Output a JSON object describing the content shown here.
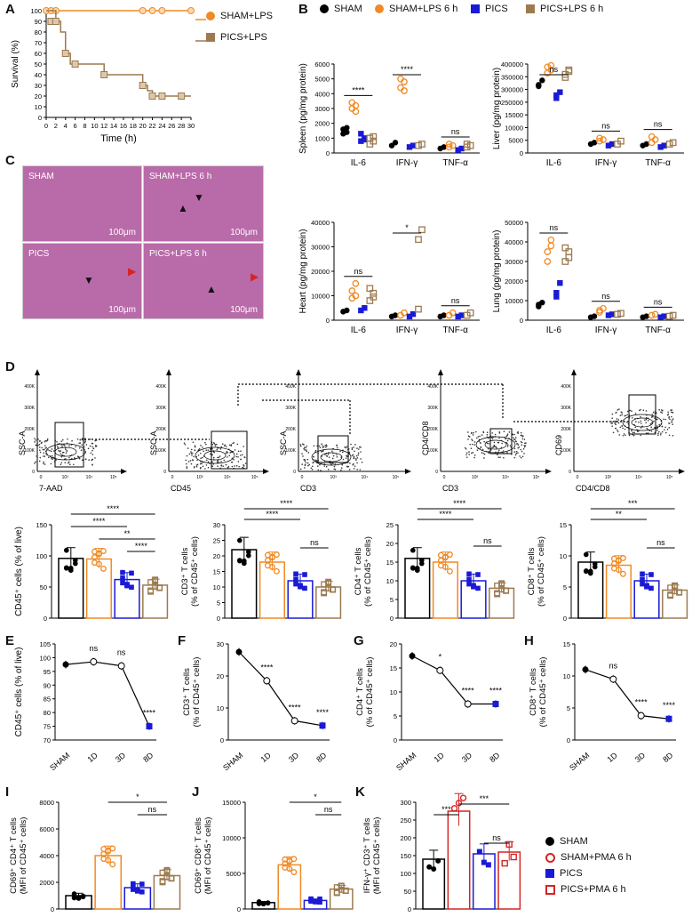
{
  "panel_letters": {
    "A": "A",
    "B": "B",
    "C": "C",
    "D": "D",
    "E": "E",
    "F": "F",
    "G": "G",
    "H": "H",
    "I": "I",
    "J": "J",
    "K": "K"
  },
  "colors": {
    "orange": "#f08a24",
    "brown": "#9c7a50",
    "blue": "#1a1ad6",
    "black": "#000000",
    "red": "#d62424"
  },
  "panel_a": {
    "chart_data": {
      "type": "line",
      "xlabel": "Time (h)",
      "ylabel": "Survival (%)",
      "xticks": [
        "0",
        "2",
        "4",
        "6",
        "8",
        "10",
        "12",
        "14",
        "16",
        "18",
        "20",
        "22",
        "24",
        "26",
        "28",
        "30"
      ],
      "yticks": [
        "0",
        "10",
        "20",
        "30",
        "40",
        "50",
        "60",
        "70",
        "80",
        "90",
        "100"
      ],
      "series": [
        {
          "name": "SHAM+LPS",
          "x": [
            0,
            30
          ],
          "y": [
            100,
            100
          ]
        },
        {
          "name": "PICS+LPS",
          "x": [
            0,
            2,
            3,
            4,
            5,
            12,
            20,
            21,
            22,
            24,
            30
          ],
          "y": [
            100,
            90,
            80,
            60,
            50,
            40,
            30,
            25,
            20,
            20,
            20
          ]
        }
      ]
    },
    "legend": [
      "SHAM+LPS",
      "PICS+LPS"
    ]
  },
  "panel_b": {
    "legend": [
      "SHAM",
      "SHAM+LPS 6 h",
      "PICS",
      "PICS+LPS 6 h"
    ],
    "cytokines": [
      "IL-6",
      "IFN-γ",
      "TNF-α"
    ],
    "chart_data": [
      {
        "type": "scatter",
        "ylabel": "Spleen (pg/mg protein)",
        "yticks": [
          "0",
          "1000",
          "2000",
          "3000",
          "4000",
          "5000",
          "6000"
        ],
        "sig": [
          "****",
          "****",
          "ns"
        ]
      },
      {
        "type": "scatter",
        "ylabel": "Liver (pg/mg protein)",
        "yticks": [
          "0",
          "5000",
          "10000",
          "15000",
          "250000",
          "300000",
          "350000",
          "400000"
        ],
        "sig": [
          "ns",
          "ns",
          "ns"
        ]
      },
      {
        "type": "scatter",
        "ylabel": "Heart (pg/mg protein)",
        "yticks": [
          "0",
          "10000",
          "20000",
          "30000",
          "40000"
        ],
        "sig": [
          "ns",
          "*",
          "ns"
        ]
      },
      {
        "type": "scatter",
        "ylabel": "Lung (pg/mg protein)",
        "yticks": [
          "0",
          "10000",
          "20000",
          "30000",
          "40000",
          "50000"
        ],
        "sig": [
          "ns",
          "ns",
          "ns"
        ]
      }
    ]
  },
  "panel_c": {
    "labels": [
      "SHAM",
      "SHAM+LPS 6 h",
      "PICS",
      "PICS+LPS 6 h"
    ],
    "scale": "100μm"
  },
  "panel_d_flow": {
    "plots": [
      {
        "x": "7-AAD",
        "y": "SSC-A"
      },
      {
        "x": "CD45",
        "y": "SSC-A"
      },
      {
        "x": "CD3",
        "y": "SSC-A"
      },
      {
        "x": "CD3",
        "y": "CD4/CD8"
      },
      {
        "x": "CD4/CD8",
        "y": "CD69"
      }
    ],
    "yticks": [
      "0",
      "100K",
      "200K",
      "300K",
      "400K"
    ],
    "xticks": [
      "0",
      "10³",
      "10⁴",
      "10⁵"
    ]
  },
  "panel_d_bars": {
    "chart_data": [
      {
        "type": "bar",
        "ylabel": "CD45⁺ cells (% of live)",
        "values": [
          96,
          95,
          62,
          53
        ],
        "yticks": [
          "0",
          "50",
          "100",
          "150"
        ],
        "sig": [
          "****",
          "****",
          "**",
          "****"
        ]
      },
      {
        "type": "bar",
        "ylabel": "CD3⁺ T cells (% of CD45⁺ cells)",
        "values": [
          22,
          18,
          12,
          10
        ],
        "yticks": [
          "0",
          "5",
          "10",
          "15",
          "20",
          "25",
          "30"
        ],
        "sig": [
          "****",
          "****",
          "ns"
        ]
      },
      {
        "type": "bar",
        "ylabel": "CD4⁺ T cells (% of CD45⁺ cells)",
        "values": [
          16,
          15,
          10,
          8
        ],
        "yticks": [
          "0",
          "5",
          "10",
          "15",
          "20",
          "25"
        ],
        "sig": [
          "****",
          "****",
          "ns"
        ]
      },
      {
        "type": "bar",
        "ylabel": "CD8⁺ T cells (% of CD45⁺ cells)",
        "values": [
          9,
          8.5,
          6,
          4.5
        ],
        "yticks": [
          "0",
          "5",
          "10",
          "15"
        ],
        "sig": [
          "***",
          "**",
          "ns"
        ]
      }
    ]
  },
  "panel_efgh": {
    "xcats": [
      "SHAM",
      "1D",
      "3D",
      "8D"
    ],
    "chart_data": [
      {
        "type": "line",
        "ylabel": "CD45⁺ cells (% of live)",
        "values": [
          97.5,
          98.5,
          97,
          75
        ],
        "yticks": [
          "70",
          "75",
          "80",
          "85",
          "90",
          "95",
          "100",
          "105"
        ],
        "sig": [
          "ns",
          "ns",
          "****"
        ]
      },
      {
        "type": "line",
        "ylabel": "CD3⁺ T cells (% of CD45⁺ cells)",
        "values": [
          27.5,
          18.5,
          6,
          4.5
        ],
        "yticks": [
          "0",
          "10",
          "20",
          "30"
        ],
        "sig": [
          "****",
          "****",
          "****"
        ]
      },
      {
        "type": "line",
        "ylabel": "CD4⁺ T cells (% of CD45⁺ cells)",
        "values": [
          17.5,
          14.5,
          7.5,
          7.5
        ],
        "yticks": [
          "0",
          "5",
          "10",
          "15",
          "20"
        ],
        "sig": [
          "*",
          "****",
          "****"
        ]
      },
      {
        "type": "line",
        "ylabel": "CD8⁺ T cells (% of CD45⁺ cells)",
        "values": [
          11,
          9.5,
          3.8,
          3.3
        ],
        "yticks": [
          "0",
          "5",
          "10",
          "15"
        ],
        "sig": [
          "ns",
          "****",
          "****"
        ]
      }
    ]
  },
  "panel_ijk": {
    "chart_data": [
      {
        "type": "bar",
        "ylabel": "CD69⁺ CD4⁺ T cells (MFI of CD45⁺ cells)",
        "values": [
          1000,
          4000,
          1600,
          2500
        ],
        "yticks": [
          "0",
          "2000",
          "4000",
          "6000",
          "8000"
        ],
        "sig": [
          "*",
          "ns"
        ]
      },
      {
        "type": "bar",
        "ylabel": "CD69⁺ CD8⁺ T cells (MFI of CD45⁺ cells)",
        "values": [
          900,
          6200,
          1200,
          2800
        ],
        "yticks": [
          "0",
          "5000",
          "10000",
          "15000"
        ],
        "sig": [
          "*",
          "ns"
        ]
      },
      {
        "type": "bar",
        "ylabel": "IFN-γ⁺ CD3⁺ T cells (MFI of CD45⁺ cells)",
        "values": [
          140,
          275,
          155,
          160
        ],
        "yticks": [
          "0",
          "50",
          "100",
          "150",
          "200",
          "250",
          "300"
        ],
        "sig": [
          "***",
          "***",
          "ns"
        ]
      }
    ],
    "legend": [
      "SHAM",
      "SHAM+PMA 6 h",
      "PICS",
      "PICS+PMA 6 h"
    ]
  }
}
